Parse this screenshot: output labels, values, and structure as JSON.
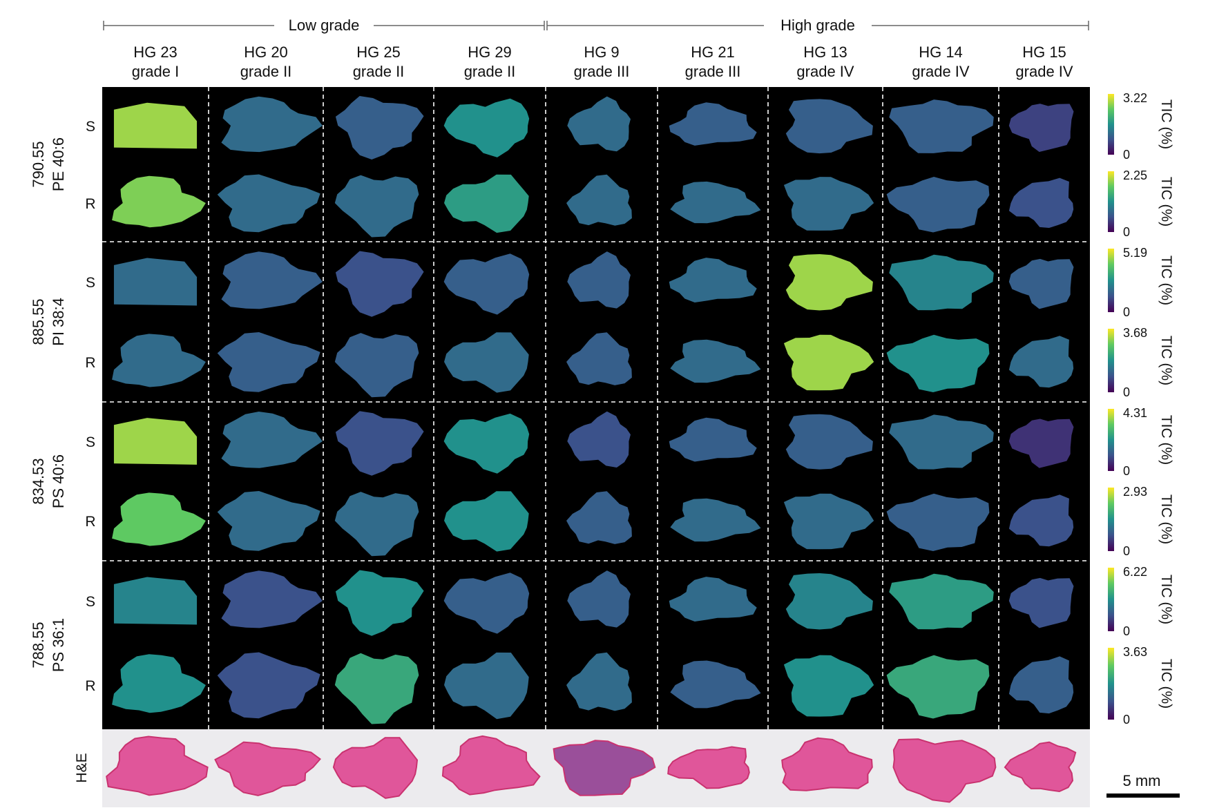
{
  "groups": [
    {
      "label": "Low grade",
      "first_col": 0,
      "last_col": 3
    },
    {
      "label": "High grade",
      "first_col": 4,
      "last_col": 8
    }
  ],
  "samples": [
    {
      "id": "HG 23",
      "grade": "grade I",
      "shape": "quad"
    },
    {
      "id": "HG 20",
      "grade": "grade II",
      "shape": "blob"
    },
    {
      "id": "HG 25",
      "grade": "grade II",
      "shape": "blob"
    },
    {
      "id": "HG 29",
      "grade": "grade II",
      "shape": "blob"
    },
    {
      "id": "HG 9",
      "grade": "grade III",
      "shape": "blob"
    },
    {
      "id": "HG 21",
      "grade": "grade III",
      "shape": "blob"
    },
    {
      "id": "HG 13",
      "grade": "grade IV",
      "shape": "blob"
    },
    {
      "id": "HG 14",
      "grade": "grade IV",
      "shape": "blob"
    },
    {
      "id": "HG 15",
      "grade": "grade IV",
      "shape": "blob"
    }
  ],
  "section_labels": [
    "S",
    "R"
  ],
  "lipids": [
    {
      "mz": "790.55",
      "name": "PE 40:6",
      "scales": [
        {
          "max": "3.22",
          "min": "0",
          "unit": "TIC (%)"
        },
        {
          "max": "2.25",
          "min": "0",
          "unit": "TIC (%)"
        }
      ],
      "intensity": {
        "S": [
          0.85,
          0.35,
          0.3,
          0.5,
          0.35,
          0.3,
          0.3,
          0.3,
          0.2
        ],
        "R": [
          0.8,
          0.35,
          0.35,
          0.55,
          0.35,
          0.35,
          0.35,
          0.3,
          0.25
        ]
      }
    },
    {
      "mz": "885.55",
      "name": "PI 38:4",
      "scales": [
        {
          "max": "5.19",
          "min": "0",
          "unit": "TIC (%)"
        },
        {
          "max": "3.68",
          "min": "0",
          "unit": "TIC (%)"
        }
      ],
      "intensity": {
        "S": [
          0.35,
          0.3,
          0.25,
          0.3,
          0.3,
          0.35,
          0.85,
          0.45,
          0.3
        ],
        "R": [
          0.35,
          0.3,
          0.3,
          0.35,
          0.3,
          0.35,
          0.85,
          0.5,
          0.35
        ]
      }
    },
    {
      "mz": "834.53",
      "name": "PS 40:6",
      "scales": [
        {
          "max": "4.31",
          "min": "0",
          "unit": "TIC (%)"
        },
        {
          "max": "2.93",
          "min": "0",
          "unit": "TIC (%)"
        }
      ],
      "intensity": {
        "S": [
          0.85,
          0.35,
          0.25,
          0.5,
          0.25,
          0.3,
          0.3,
          0.35,
          0.15
        ],
        "R": [
          0.75,
          0.35,
          0.35,
          0.5,
          0.3,
          0.35,
          0.35,
          0.3,
          0.25
        ]
      }
    },
    {
      "mz": "788.55",
      "name": "PS 36:1",
      "scales": [
        {
          "max": "6.22",
          "min": "0",
          "unit": "TIC (%)"
        },
        {
          "max": "3.63",
          "min": "0",
          "unit": "TIC (%)"
        }
      ],
      "intensity": {
        "S": [
          0.45,
          0.25,
          0.5,
          0.3,
          0.3,
          0.35,
          0.45,
          0.55,
          0.25
        ],
        "R": [
          0.5,
          0.25,
          0.6,
          0.35,
          0.35,
          0.3,
          0.5,
          0.6,
          0.3
        ]
      }
    }
  ],
  "he_label": "H&E",
  "scale_bar": {
    "label": "5 mm"
  },
  "colors": {
    "panel_background": "#000000",
    "divider": "#ffffff",
    "he_background": "#ecebee",
    "he_tissue": "#e0569a",
    "he_tissue_dark": "#c9326f",
    "colormap": "viridis"
  }
}
